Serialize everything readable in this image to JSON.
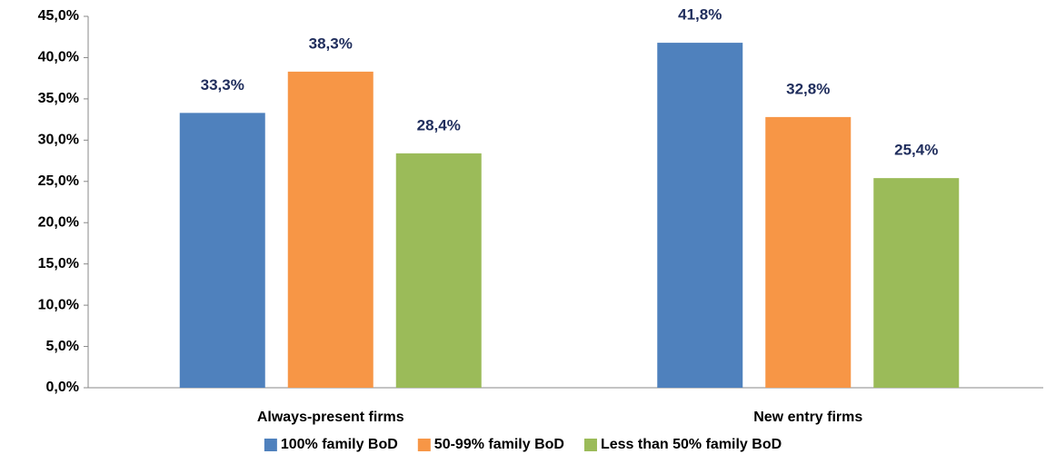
{
  "chart_data": {
    "type": "bar",
    "categories": [
      "Always-present firms",
      "New entry firms"
    ],
    "series": [
      {
        "name": "100% family BoD",
        "color": "#4f81bd",
        "values": [
          33.3,
          41.8
        ],
        "value_labels": [
          "33,3%",
          "41,8%"
        ]
      },
      {
        "name": "50-99% family BoD",
        "color": "#f79646",
        "values": [
          38.3,
          32.8
        ],
        "value_labels": [
          "38,3%",
          "32,8%"
        ]
      },
      {
        "name": "Less than 50% family BoD",
        "color": "#9bbb59",
        "values": [
          28.4,
          25.4
        ],
        "value_labels": [
          "28,4%",
          "25,4%"
        ]
      }
    ],
    "ylim": [
      0,
      45
    ],
    "yticks": [
      {
        "value": 0,
        "label": "0,0%"
      },
      {
        "value": 5,
        "label": "5,0%"
      },
      {
        "value": 10,
        "label": "10,0%"
      },
      {
        "value": 15,
        "label": "15,0%"
      },
      {
        "value": 20,
        "label": "20,0%"
      },
      {
        "value": 25,
        "label": "25,0%"
      },
      {
        "value": 30,
        "label": "30,0%"
      },
      {
        "value": 35,
        "label": "35,0%"
      },
      {
        "value": 40,
        "label": "40,0%"
      },
      {
        "value": 45,
        "label": "45,0%"
      }
    ],
    "legend": "bottom"
  }
}
